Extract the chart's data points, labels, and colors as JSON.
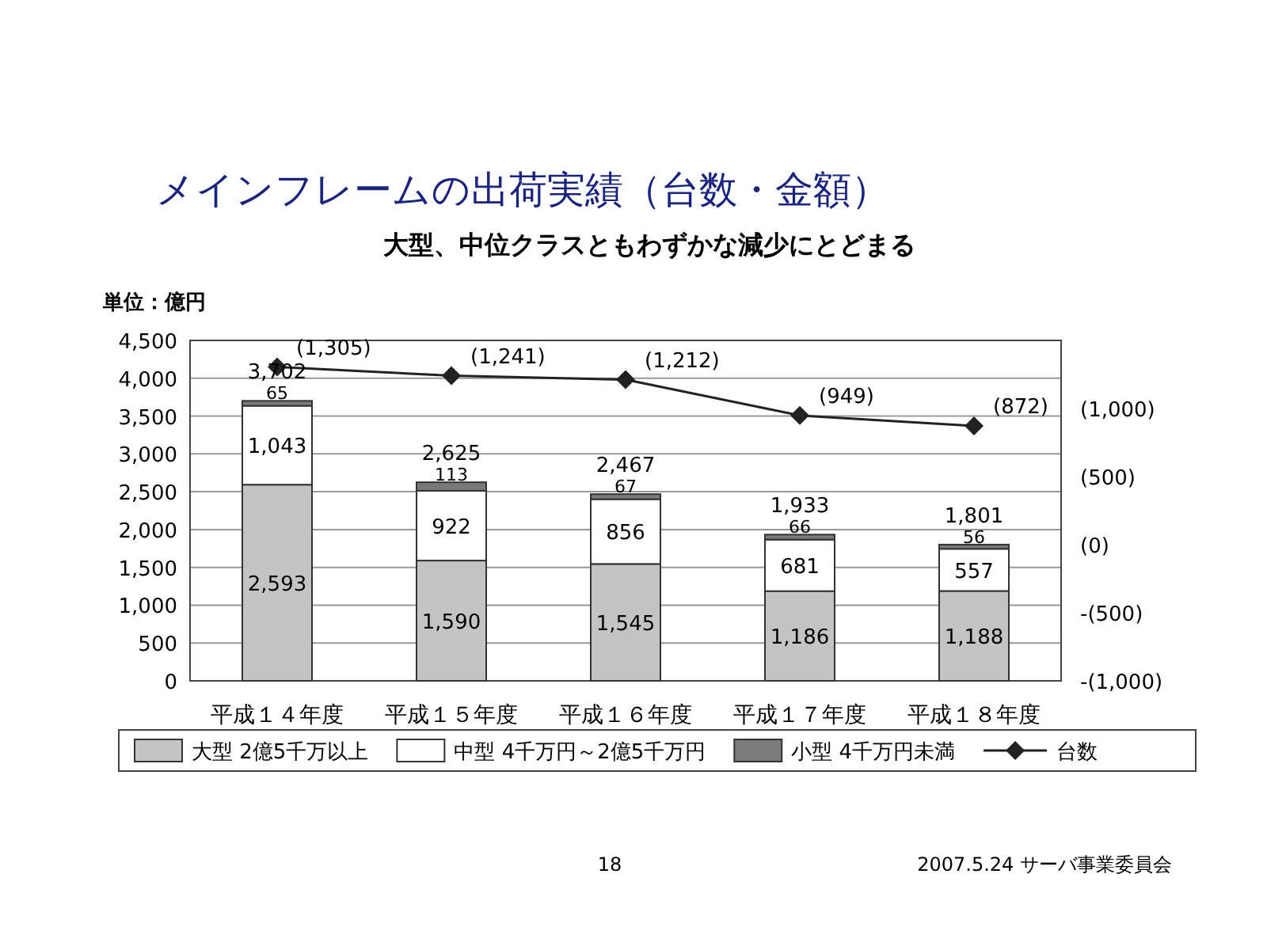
{
  "chart_data": {
    "type": "bar",
    "title": "メインフレームの出荷実績（台数・金額）",
    "subtitle": "大型、中位クラスともわずかな減少にとどまる",
    "ylabel": "単位：億円",
    "categories": [
      "平成１４年度",
      "平成１５年度",
      "平成１６年度",
      "平成１７年度",
      "平成１８年度"
    ],
    "stacked": true,
    "series": [
      {
        "name": "大型 2億5千万以上",
        "color": "#c4c4c4",
        "values": [
          2593,
          1590,
          1545,
          1186,
          1188
        ],
        "value_labels": [
          "2,593",
          "1,590",
          "1,545",
          "1,186",
          "1,188"
        ]
      },
      {
        "name": "中型 4千万円～2億5千万円",
        "color": "#ffffff",
        "values": [
          1043,
          922,
          856,
          681,
          557
        ],
        "value_labels": [
          "1,043",
          "922",
          "856",
          "681",
          "557"
        ]
      },
      {
        "name": "小型 4千万円未満",
        "color": "#7a7a7a",
        "values": [
          65,
          113,
          67,
          66,
          56
        ],
        "value_labels": [
          "65",
          "113",
          "67",
          "66",
          "56"
        ]
      },
      {
        "name": "台数",
        "type": "line",
        "axis": "y2",
        "color": "#222222",
        "marker": "diamond",
        "values": [
          1305,
          1241,
          1212,
          949,
          872
        ],
        "value_labels": [
          "(1,305)",
          "(1,241)",
          "(1,212)",
          "(949)",
          "(872)"
        ]
      }
    ],
    "totals": [
      "3,702",
      "2,625",
      "2,467",
      "1,933",
      "1,801"
    ],
    "ylim": [
      0,
      4500
    ],
    "yticks": [
      0,
      500,
      {
        "value": 1000,
        "label": "1,000"
      },
      {
        "value": 1500,
        "label": "1,500"
      },
      {
        "value": 2000,
        "label": "2,000"
      },
      {
        "value": 2500,
        "label": "2,500"
      },
      {
        "value": 3000,
        "label": "3,000"
      },
      {
        "value": 3500,
        "label": "3,500"
      },
      {
        "value": 4000,
        "label": "4,000"
      },
      {
        "value": 4500,
        "label": "4,500"
      }
    ],
    "y2lim": [
      -1000,
      1500
    ],
    "y2ticks": [
      {
        "value": -1000,
        "label": "-(1,000)"
      },
      {
        "value": -500,
        "label": "-(500)"
      },
      {
        "value": 0,
        "label": "(0)"
      },
      {
        "value": 500,
        "label": "(500)"
      },
      {
        "value": 1000,
        "label": "(1,000)"
      }
    ],
    "grid": "y",
    "legend": "bottom",
    "annotations": [
      "18",
      "2007.5.24 サーバ事業委員会"
    ]
  }
}
